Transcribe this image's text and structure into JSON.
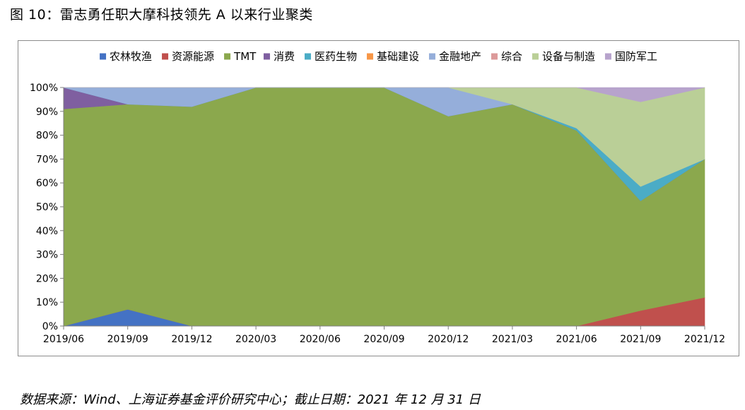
{
  "figure": {
    "title": "图 10：雷志勇任职大摩科技领先 A 以来行业聚类",
    "footer": "数据来源：Wind、上海证券基金评价研究中心；截止日期：2021 年 12 月 31 日"
  },
  "chart_data": {
    "type": "area",
    "stacked": true,
    "normalized": true,
    "categories": [
      "2019/06",
      "2019/09",
      "2019/12",
      "2020/03",
      "2020/06",
      "2020/09",
      "2020/12",
      "2021/03",
      "2021/06",
      "2021/09",
      "2021/12"
    ],
    "ylim": [
      0,
      100
    ],
    "yticks": [
      "0%",
      "10%",
      "20%",
      "30%",
      "40%",
      "50%",
      "60%",
      "70%",
      "80%",
      "90%",
      "100%"
    ],
    "legend_position": "top",
    "grid": false,
    "series": [
      {
        "name": "农林牧渔",
        "color": "#4472C4",
        "values": [
          0,
          7,
          0,
          0,
          0,
          0,
          0,
          0,
          0,
          0,
          0
        ]
      },
      {
        "name": "资源能源",
        "color": "#C0504D",
        "values": [
          0,
          0,
          0,
          0,
          0,
          0,
          0,
          0,
          0,
          6.5,
          12
        ]
      },
      {
        "name": "TMT",
        "color": "#8BA84D",
        "values": [
          91,
          86,
          92,
          100,
          100,
          100,
          88,
          93,
          82,
          46,
          58
        ]
      },
      {
        "name": "消费",
        "color": "#7F5FA0",
        "values": [
          9,
          0,
          0,
          0,
          0,
          0,
          0,
          0,
          0,
          0,
          0
        ]
      },
      {
        "name": "医药生物",
        "color": "#4BACC6",
        "values": [
          0,
          0,
          0,
          0,
          0,
          0,
          0,
          0,
          1,
          6,
          0
        ]
      },
      {
        "name": "基础建设",
        "color": "#F79646",
        "values": [
          0,
          0,
          0,
          0,
          0,
          0,
          0,
          0,
          0,
          0,
          0
        ]
      },
      {
        "name": "金融地产",
        "color": "#95AEDA",
        "values": [
          0,
          7,
          8,
          0,
          0,
          0,
          12,
          0,
          0,
          0,
          0
        ]
      },
      {
        "name": "综合",
        "color": "#DC9A9A",
        "values": [
          0,
          0,
          0,
          0,
          0,
          0,
          0,
          0,
          0,
          0,
          0
        ]
      },
      {
        "name": "设备与制造",
        "color": "#BACF97",
        "values": [
          0,
          0,
          0,
          0,
          0,
          0,
          0,
          7,
          17,
          35.5,
          30
        ]
      },
      {
        "name": "国防军工",
        "color": "#B7A3CC",
        "values": [
          0,
          0,
          0,
          0,
          0,
          0,
          0,
          0,
          0,
          6,
          0
        ]
      }
    ]
  }
}
